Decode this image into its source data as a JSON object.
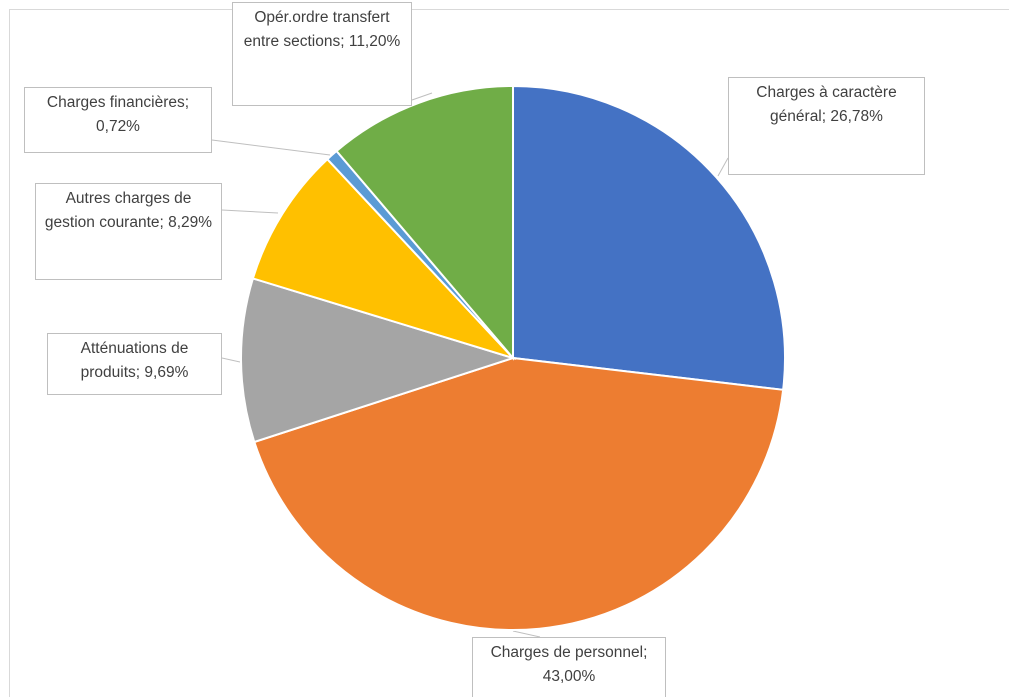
{
  "chart_data": {
    "type": "pie",
    "categories": [
      "Charges à caractère général",
      "Charges de personnel",
      "Atténuations de produits",
      "Autres charges de gestion courante",
      "Charges financières",
      "Opér.ordre transfert entre sections"
    ],
    "values": [
      26.78,
      43.0,
      9.69,
      8.29,
      0.72,
      11.2
    ],
    "value_labels": [
      "Charges à caractère général; 26,78%",
      "Charges de personnel; 43,00%",
      "Atténuations de produits; 9,69%",
      "Autres charges de gestion courante; 8,29%",
      "Charges financières; 0,72%",
      "Opér.ordre transfert entre sections; 11,20%"
    ],
    "colors": [
      "#4472c4",
      "#ed7d31",
      "#a5a5a5",
      "#ffc000",
      "#5b9bd5",
      "#70ad47"
    ]
  }
}
